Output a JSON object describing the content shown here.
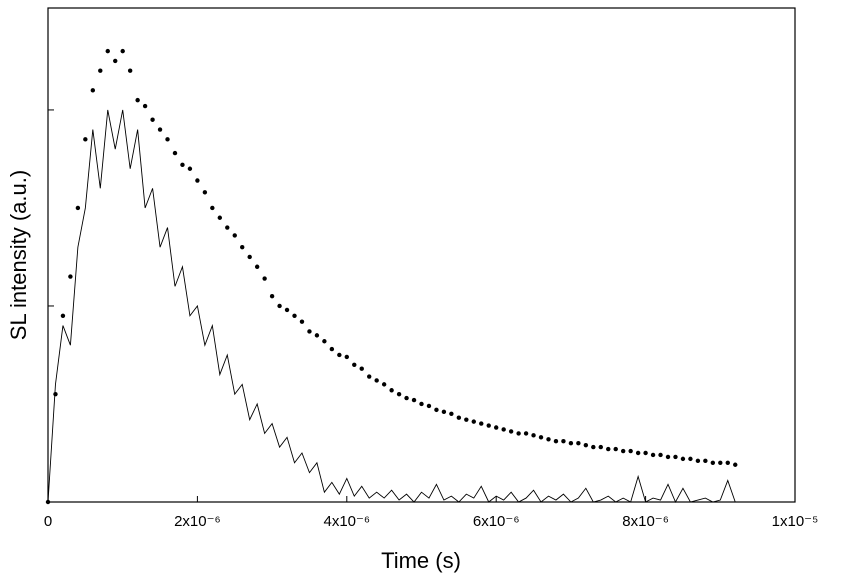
{
  "chart_data": {
    "type": "scatter",
    "xlabel": "Time (s)",
    "ylabel": "SL intensity (a.u.)",
    "x": [
      0,
      1e-07,
      2e-07,
      3e-07,
      4e-07,
      5e-07,
      6e-07,
      7e-07,
      8e-07,
      9e-07,
      1e-06,
      1.1e-06,
      1.2e-06,
      1.3e-06,
      1.4e-06,
      1.5e-06,
      1.6e-06,
      1.7e-06,
      1.8e-06,
      1.9e-06,
      2e-06,
      2.1e-06,
      2.2e-06,
      2.3e-06,
      2.4e-06,
      2.5e-06,
      2.6e-06,
      2.7e-06,
      2.8e-06,
      2.9e-06,
      3e-06,
      3.1e-06,
      3.2e-06,
      3.3e-06,
      3.4e-06,
      3.5e-06,
      3.6e-06,
      3.7e-06,
      3.8e-06,
      3.9e-06,
      4e-06,
      4.1e-06,
      4.2e-06,
      4.3e-06,
      4.4e-06,
      4.5e-06,
      4.6e-06,
      4.7e-06,
      4.8e-06,
      4.9e-06,
      5e-06,
      5.1e-06,
      5.2e-06,
      5.3e-06,
      5.4e-06,
      5.5e-06,
      5.6e-06,
      5.7e-06,
      5.8e-06,
      5.9e-06,
      6e-06,
      6.1e-06,
      6.2e-06,
      6.3e-06,
      6.4e-06,
      6.5e-06,
      6.6e-06,
      6.7e-06,
      6.8e-06,
      6.9e-06,
      7e-06,
      7.1e-06,
      7.2e-06,
      7.3e-06,
      7.4e-06,
      7.5e-06,
      7.6e-06,
      7.7e-06,
      7.8e-06,
      7.9e-06,
      8e-06,
      8.1e-06,
      8.2e-06,
      8.3e-06,
      8.4e-06,
      8.5e-06,
      8.6e-06,
      8.7e-06,
      8.8e-06,
      8.9e-06,
      9e-06,
      9.1e-06,
      9.2e-06
    ],
    "series": [
      {
        "mode": "markers",
        "color": "#000000",
        "values": [
          0,
          0.55,
          0.95,
          1.15,
          1.5,
          1.85,
          2.1,
          2.2,
          2.3,
          2.25,
          2.3,
          2.2,
          2.05,
          2.02,
          1.95,
          1.9,
          1.85,
          1.78,
          1.72,
          1.7,
          1.64,
          1.58,
          1.5,
          1.45,
          1.4,
          1.36,
          1.3,
          1.25,
          1.2,
          1.14,
          1.05,
          1.0,
          0.98,
          0.95,
          0.92,
          0.87,
          0.85,
          0.82,
          0.78,
          0.75,
          0.74,
          0.7,
          0.68,
          0.64,
          0.62,
          0.6,
          0.57,
          0.55,
          0.53,
          0.52,
          0.5,
          0.49,
          0.47,
          0.46,
          0.45,
          0.43,
          0.42,
          0.41,
          0.4,
          0.39,
          0.38,
          0.37,
          0.36,
          0.35,
          0.35,
          0.34,
          0.33,
          0.32,
          0.31,
          0.31,
          0.3,
          0.3,
          0.29,
          0.28,
          0.28,
          0.27,
          0.27,
          0.26,
          0.26,
          0.25,
          0.25,
          0.24,
          0.24,
          0.23,
          0.23,
          0.22,
          0.22,
          0.21,
          0.21,
          0.2,
          0.2,
          0.2,
          0.19
        ]
      },
      {
        "mode": "lines",
        "color": "#000000",
        "values": [
          0,
          0.6,
          0.9,
          0.8,
          1.3,
          1.5,
          1.9,
          1.6,
          2.0,
          1.8,
          2.0,
          1.7,
          1.9,
          1.5,
          1.6,
          1.3,
          1.4,
          1.1,
          1.2,
          0.95,
          1.0,
          0.8,
          0.9,
          0.65,
          0.75,
          0.55,
          0.6,
          0.42,
          0.5,
          0.35,
          0.4,
          0.28,
          0.33,
          0.2,
          0.25,
          0.15,
          0.2,
          0.05,
          0.1,
          0.04,
          0.12,
          0.03,
          0.08,
          0.02,
          0.05,
          0.02,
          0.06,
          0.01,
          0.04,
          0.0,
          0.05,
          0.02,
          0.09,
          0.01,
          0.03,
          0.0,
          0.04,
          0.02,
          0.08,
          0.0,
          0.03,
          0.01,
          0.05,
          0.0,
          0.02,
          0.06,
          0.0,
          0.03,
          0.01,
          0.04,
          0.0,
          0.02,
          0.07,
          0.0,
          0.01,
          0.03,
          0.0,
          0.02,
          0.0,
          0.13,
          0.0,
          0.02,
          0.01,
          0.09,
          0.0,
          0.07,
          0.0,
          0.01,
          0.02,
          0.0,
          0.01,
          0.11,
          0.0
        ]
      }
    ],
    "xlim": [
      0,
      1e-05
    ],
    "xticks": [
      0,
      {
        "value": 2e-06,
        "label": "2x10⁻⁶"
      },
      {
        "value": 4e-06,
        "label": "4x10⁻⁶"
      },
      {
        "value": 6e-06,
        "label": "6x10⁻⁶"
      },
      {
        "value": 8e-06,
        "label": "8x10⁻⁶"
      },
      {
        "value": 1e-05,
        "label": "1x10⁻⁵"
      }
    ],
    "ylim": [
      0,
      2.52
    ],
    "yticks": [
      0,
      1,
      2
    ]
  }
}
